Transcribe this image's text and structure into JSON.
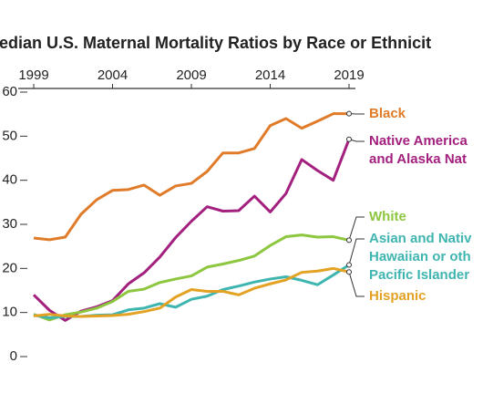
{
  "chart_data": {
    "type": "line",
    "title": "edian U.S. Maternal Mortality Ratios by Race or Ethnicit",
    "x": [
      1999,
      2000,
      2001,
      2002,
      2003,
      2004,
      2005,
      2006,
      2007,
      2008,
      2009,
      2010,
      2011,
      2012,
      2013,
      2014,
      2015,
      2016,
      2017,
      2018,
      2019
    ],
    "xlim": [
      1999,
      2019
    ],
    "xticks": [
      1999,
      2004,
      2009,
      2014,
      2019
    ],
    "ylim": [
      0,
      60
    ],
    "yticks": [
      0,
      10,
      20,
      30,
      40,
      50,
      60
    ],
    "series": [
      {
        "name": [
          "Black"
        ],
        "color": "#e07b2a",
        "values": [
          26.9,
          26.5,
          27.1,
          32.3,
          35.6,
          37.7,
          37.9,
          38.9,
          36.6,
          38.7,
          39.3,
          42.0,
          46.2,
          46.2,
          47.2,
          52.4,
          54.0,
          51.8,
          53.4,
          55.1,
          55.1
        ]
      },
      {
        "name": [
          "Native America",
          "and Alaska Nat"
        ],
        "color": "#a3207f",
        "values": [
          14.0,
          10.5,
          8.2,
          10.3,
          11.3,
          12.7,
          16.5,
          19.0,
          22.6,
          27.0,
          30.7,
          34.0,
          33.0,
          33.1,
          36.4,
          32.8,
          37.0,
          44.7,
          42.2,
          40.0,
          49.3
        ]
      },
      {
        "name": [
          "White"
        ],
        "color": "#8dc63f",
        "values": [
          9.6,
          8.3,
          9.5,
          10.1,
          11.0,
          12.5,
          14.8,
          15.3,
          16.8,
          17.6,
          18.3,
          20.3,
          21.0,
          21.8,
          22.8,
          25.2,
          27.2,
          27.6,
          27.1,
          27.2,
          26.4
        ]
      },
      {
        "name": [
          "Asian and Nativ",
          "Hawaiian or oth",
          "Pacific Islander"
        ],
        "color": "#3fb5b0",
        "values": [
          9.4,
          8.8,
          9.1,
          9.1,
          9.4,
          9.5,
          10.6,
          11.0,
          12.0,
          11.2,
          13.0,
          13.7,
          15.2,
          16.0,
          16.9,
          17.6,
          18.1,
          17.3,
          16.3,
          18.5,
          20.8
        ]
      },
      {
        "name": [
          "Hispanic"
        ],
        "color": "#e3a224",
        "values": [
          9.2,
          9.6,
          9.2,
          9.1,
          9.2,
          9.3,
          9.6,
          10.2,
          11.0,
          13.5,
          15.2,
          14.8,
          14.8,
          14.0,
          15.5,
          16.5,
          17.4,
          19.1,
          19.4,
          20.0,
          19.2
        ]
      }
    ]
  }
}
